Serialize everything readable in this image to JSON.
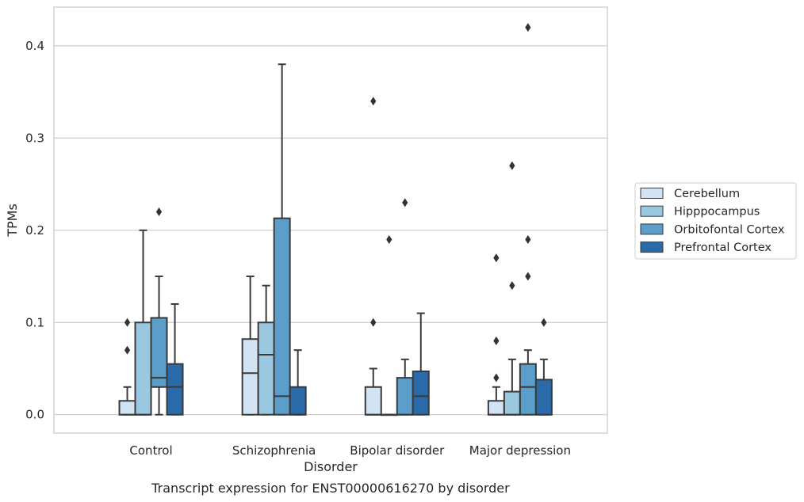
{
  "caption": "Transcript expression for ENST00000616270 by disorder",
  "chart_data": {
    "type": "box",
    "xlabel": "Disorder",
    "ylabel": "TPMs",
    "ylim": [
      -0.02,
      0.442
    ],
    "yticks": [
      0.0,
      0.1,
      0.2,
      0.3,
      0.4
    ],
    "ytick_labels": [
      "0.0",
      "0.1",
      "0.2",
      "0.3",
      "0.4"
    ],
    "grid": "horizontal",
    "legend_position": "right",
    "categories": [
      "Control",
      "Schizophrenia",
      "Bipolar disorder",
      "Major depression"
    ],
    "series": [
      {
        "name": "Cerebellum",
        "color": "#d2e3f3",
        "boxes": [
          {
            "q1": 0.0,
            "median": 0.0,
            "q3": 0.015,
            "whislo": 0.0,
            "whishi": 0.03,
            "fliers": [
              0.07,
              0.1
            ]
          },
          {
            "q1": 0.0,
            "median": 0.045,
            "q3": 0.082,
            "whislo": 0.0,
            "whishi": 0.15,
            "fliers": []
          },
          {
            "q1": 0.0,
            "median": 0.0,
            "q3": 0.03,
            "whislo": 0.0,
            "whishi": 0.05,
            "fliers": [
              0.1,
              0.34
            ]
          },
          {
            "q1": 0.0,
            "median": 0.0,
            "q3": 0.015,
            "whislo": 0.0,
            "whishi": 0.03,
            "fliers": [
              0.04,
              0.08,
              0.17
            ]
          }
        ]
      },
      {
        "name": "Hipppocampus",
        "color": "#9ac8e0",
        "boxes": [
          {
            "q1": 0.0,
            "median": 0.0,
            "q3": 0.1,
            "whislo": 0.0,
            "whishi": 0.2,
            "fliers": []
          },
          {
            "q1": 0.0,
            "median": 0.065,
            "q3": 0.1,
            "whislo": 0.0,
            "whishi": 0.14,
            "fliers": []
          },
          {
            "q1": 0.0,
            "median": 0.0,
            "q3": 0.0,
            "whislo": 0.0,
            "whishi": 0.0,
            "fliers": [
              0.19
            ]
          },
          {
            "q1": 0.0,
            "median": 0.0,
            "q3": 0.025,
            "whislo": 0.0,
            "whishi": 0.06,
            "fliers": [
              0.14,
              0.27
            ]
          }
        ]
      },
      {
        "name": "Orbitofontal Cortex",
        "color": "#5a9ec9",
        "boxes": [
          {
            "q1": 0.03,
            "median": 0.04,
            "q3": 0.105,
            "whislo": 0.0,
            "whishi": 0.15,
            "fliers": [
              0.22
            ]
          },
          {
            "q1": 0.0,
            "median": 0.02,
            "q3": 0.213,
            "whislo": 0.0,
            "whishi": 0.38,
            "fliers": []
          },
          {
            "q1": 0.0,
            "median": 0.0,
            "q3": 0.04,
            "whislo": 0.0,
            "whishi": 0.06,
            "fliers": [
              0.23
            ]
          },
          {
            "q1": 0.0,
            "median": 0.03,
            "q3": 0.055,
            "whislo": 0.0,
            "whishi": 0.07,
            "fliers": [
              0.15,
              0.19,
              0.42
            ]
          }
        ]
      },
      {
        "name": "Prefrontal Cortex",
        "color": "#2a6aa9",
        "boxes": [
          {
            "q1": 0.0,
            "median": 0.03,
            "q3": 0.055,
            "whislo": 0.0,
            "whishi": 0.12,
            "fliers": []
          },
          {
            "q1": 0.0,
            "median": 0.0,
            "q3": 0.03,
            "whislo": 0.0,
            "whishi": 0.07,
            "fliers": []
          },
          {
            "q1": 0.0,
            "median": 0.02,
            "q3": 0.047,
            "whislo": 0.0,
            "whishi": 0.11,
            "fliers": []
          },
          {
            "q1": 0.0,
            "median": 0.0,
            "q3": 0.038,
            "whislo": 0.0,
            "whishi": 0.06,
            "fliers": [
              0.1
            ]
          }
        ]
      }
    ]
  }
}
